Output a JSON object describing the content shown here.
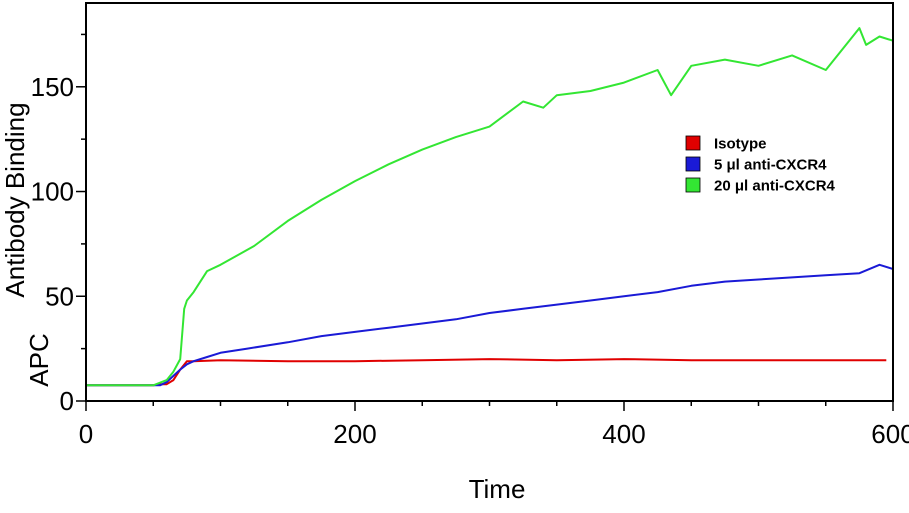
{
  "chart_data": {
    "type": "line",
    "xlabel": "Time",
    "ylabel": [
      "Antibody Binding",
      "APC"
    ],
    "xlim": [
      0,
      600
    ],
    "ylim": [
      0,
      190
    ],
    "xticks": [
      0,
      200,
      400,
      600
    ],
    "yticks": [
      0,
      50,
      100,
      150
    ],
    "grid": false,
    "legend_position": "right",
    "series": [
      {
        "name": "Isotype",
        "color": "#e00000",
        "x": [
          0,
          50,
          55,
          60,
          65,
          70,
          75,
          80,
          100,
          150,
          200,
          250,
          300,
          350,
          400,
          450,
          500,
          550,
          595
        ],
        "y": [
          7.5,
          7.5,
          8,
          8,
          10,
          15,
          19,
          19,
          19.5,
          19,
          19,
          19.5,
          20,
          19.5,
          20,
          19.5,
          19.5,
          19.5,
          19.5
        ]
      },
      {
        "name": "5 μl anti-CXCR4",
        "color": "#1a1ad6",
        "x": [
          0,
          40,
          55,
          60,
          65,
          70,
          75,
          80,
          90,
          100,
          120,
          150,
          175,
          200,
          225,
          250,
          275,
          300,
          325,
          350,
          375,
          400,
          425,
          450,
          475,
          500,
          525,
          550,
          575,
          590,
          600
        ],
        "y": [
          7.5,
          7.5,
          7.5,
          9,
          12,
          15,
          17.5,
          19,
          21,
          23,
          25,
          28,
          31,
          33,
          35,
          37,
          39,
          42,
          44,
          46,
          48,
          50,
          52,
          55,
          57,
          58,
          59,
          60,
          61,
          65,
          63
        ]
      },
      {
        "name": "20 μl anti-CXCR4",
        "color": "#33e633",
        "x": [
          0,
          50,
          60,
          65,
          70,
          73,
          75,
          80,
          90,
          100,
          125,
          150,
          175,
          200,
          225,
          250,
          275,
          300,
          325,
          340,
          350,
          375,
          400,
          425,
          435,
          450,
          475,
          500,
          525,
          550,
          575,
          580,
          590,
          600
        ],
        "y": [
          7.5,
          7.5,
          10,
          14,
          20,
          44,
          48,
          52,
          62,
          65,
          74,
          86,
          96,
          105,
          113,
          120,
          126,
          131,
          143,
          140,
          146,
          148,
          152,
          158,
          146,
          160,
          163,
          160,
          165,
          158,
          178,
          170,
          174,
          172
        ]
      }
    ]
  }
}
